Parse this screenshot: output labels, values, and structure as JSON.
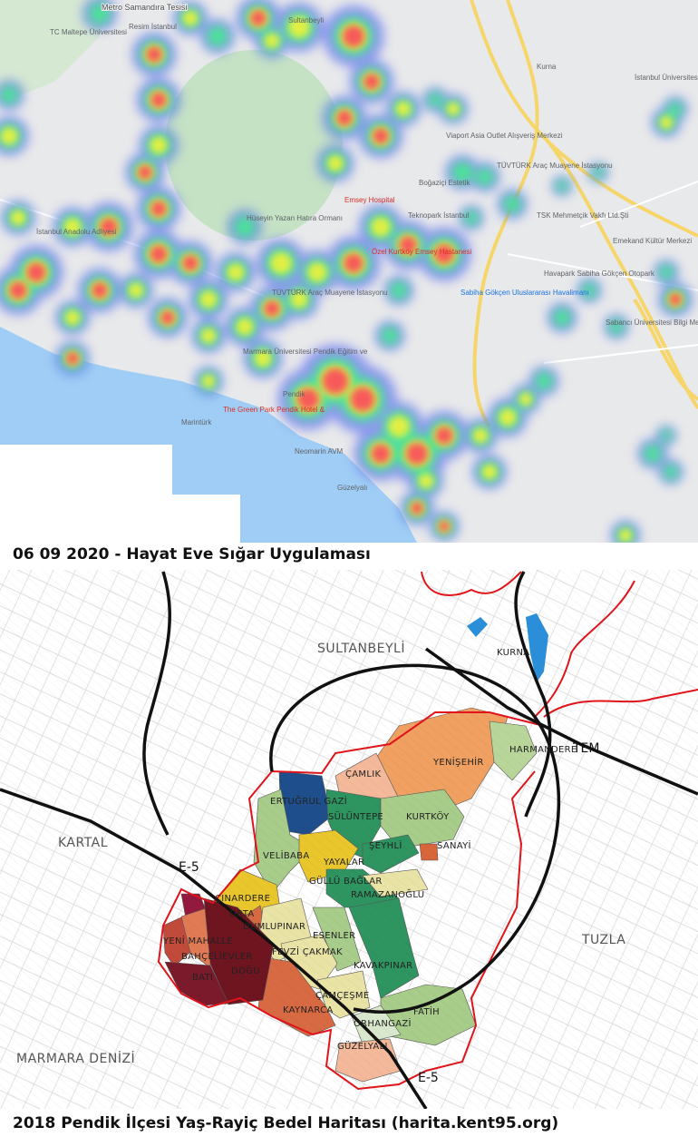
{
  "top_map": {
    "caption": "06 09 2020 - Hayat Eve Sığar Uygulaması",
    "colors": {
      "land": "#e8e9ea",
      "forest": "#c5e2c4",
      "sea": "#9fcdf5",
      "road": "#f6d66b",
      "heat_low": "#6f7cf0",
      "heat_mid": "#3ff08a",
      "heat_high_mid": "#f2f03a",
      "heat_high": "#f75a5a"
    },
    "labels": {
      "metro": "Metro Samandıra Tesisi",
      "maltepe_uni": "TC Maltepe Üniversitesi",
      "resim": "Resim İstanbul",
      "sultanbeyli": "Sultanbeyli",
      "kurna": "Kurna",
      "ist_uni": "İstanbul Üniversitesi",
      "viaport": "Viaport Asia Outlet Alışveriş Merkezi",
      "tuvturk1": "TÜVTÜRK Araç Muayene İstasyonu",
      "bogazici": "Boğaziçi Estetik",
      "emsey": "Emsey Hospital",
      "teknopark": "Teknopark İstanbul",
      "tsk": "TSK Mehmetçik Vakfı Ltd.Şti",
      "emekand": "Emekand Kültür Merkezi",
      "huseyin": "Hüseyin Yazan Hatıra Ormanı",
      "adliye": "İstanbul Anadolu Adliyesi",
      "ozel_kurtkoy": "Özel Kurtköy Emsey Hastanesi",
      "tuvturk2": "TÜVTÜRK Araç Muayene İstasyonu",
      "sabiha": "Sabiha Gökçen Uluslararası Havalimanı",
      "havapark": "Havapark Sabiha Gökçen Otopark",
      "sabanci": "Sabancı Üniversitesi Bilgi Merkezi",
      "marmara_uni": "Marmara Üniversitesi Pendik Eğitim ve",
      "pendik": "Pendik",
      "green_park": "The Green Park Pendik Hotel &",
      "marinturk": "Marintürk",
      "neomarin": "Neomarin AVM",
      "guzelyali": "Güzelyalı"
    }
  },
  "bottom_map": {
    "caption": "2018 Pendik İlçesi Yaş-Rayiç Bedel Haritası (harita.kent95.org)",
    "colors": {
      "boundary": "#e0141b",
      "road": "#111111",
      "lake": "#2a8fd8",
      "very_high": "#6e1520",
      "high": "#d76a42",
      "mid_high": "#f0a060",
      "mid": "#f4b99a",
      "mid_low": "#e8c62c",
      "low_pale": "#e9e3a6",
      "low": "#a8cc8a",
      "very_low": "#2e9560",
      "lowest": "#1f4e8c"
    },
    "labels": {
      "sultanbeyli": "SULTANBEYLİ",
      "kurna": "KURNA",
      "yenisehir": "YENİŞEHİR",
      "harmandere": "HARMANDERE",
      "tem": "TEM",
      "camlik": "ÇAMLIK",
      "ertugrul_gazi": "ERTUĞRUL GAZİ",
      "suluntepe": "SÜLÜNTEPE",
      "kurtkoy": "KURTKÖY",
      "seyhli": "ŞEYHLİ",
      "sanayi": "SANAYİ",
      "kartal": "KARTAL",
      "e5_1": "E-5",
      "velibaba": "VELİBABA",
      "yayalar": "YAYALAR",
      "gullu_baglar": "GÜLLÜ BAĞLAR",
      "ramazanoglu": "RAMAZANOĞLU",
      "cinardere": "ÇINARDERE",
      "orta": "ORTA",
      "dumlupinar": "DUMLUPINAR",
      "yeni_mahalle": "YENİ MAHALLE",
      "bahcelievler": "BAHÇELİEVLER",
      "esenler": "ESENLER",
      "fevzi_cakmak": "FEVZİ ÇAKMAK",
      "bati": "BATI",
      "dogu": "DOĞU",
      "kavakpinar": "KAVAKPINAR",
      "tuzla": "TUZLA",
      "camcesme": "ÇAMÇEŞME",
      "kaynarca": "KAYNARCA",
      "fatih": "FATİH",
      "orhangazi": "ORHANGAZİ",
      "marmara_denizi": "MARMARA DENİZİ",
      "guzelyali": "GÜZELYALI",
      "e5_2": "E-5"
    }
  }
}
